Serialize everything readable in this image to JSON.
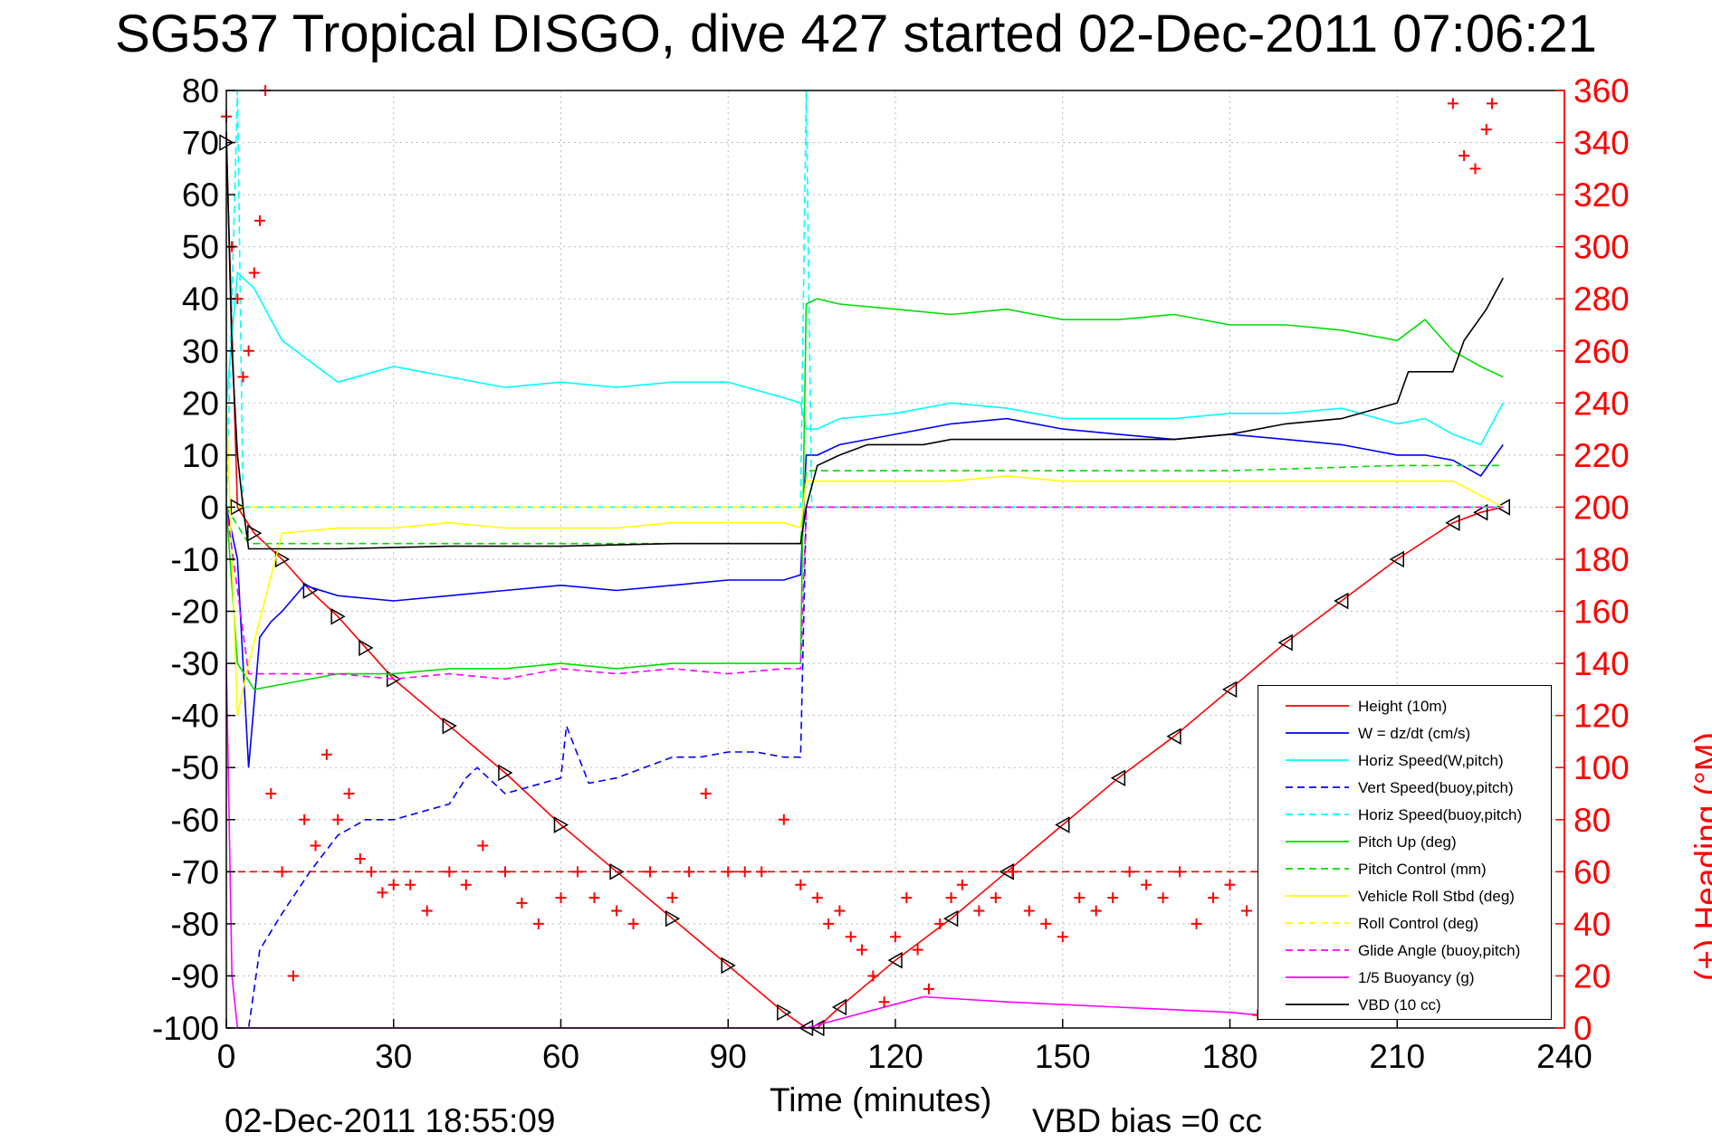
{
  "title": "SG537 Tropical DISGO, dive 427 started 02-Dec-2011 07:06:21",
  "footer": {
    "timestamp": "02-Dec-2011 18:55:09",
    "vbd_bias": "VBD bias =0 cc"
  },
  "chart_data": {
    "type": "line",
    "xlabel": "Time (minutes)",
    "ylabel": "",
    "ylabel_right": "(+) Heading (°M)",
    "xlim": [
      0,
      240
    ],
    "ylim": [
      -100,
      80
    ],
    "ylim_right": [
      0,
      360
    ],
    "xticks": [
      0,
      30,
      60,
      90,
      120,
      150,
      180,
      210,
      240
    ],
    "yticks": [
      -100,
      -90,
      -80,
      -70,
      -60,
      -50,
      -40,
      -30,
      -20,
      -10,
      0,
      10,
      20,
      30,
      40,
      50,
      60,
      70,
      80
    ],
    "yticks_right": [
      0,
      20,
      40,
      60,
      80,
      100,
      120,
      140,
      160,
      180,
      200,
      220,
      240,
      260,
      280,
      300,
      320,
      340,
      360
    ],
    "grid": true,
    "legend_position": "bottom-right",
    "series": [
      {
        "name": "Height (10m)",
        "color": "#ff0000",
        "style": "solid",
        "marker": "triangle",
        "x": [
          0,
          2,
          5,
          10,
          15,
          20,
          25,
          30,
          40,
          50,
          60,
          70,
          80,
          90,
          100,
          104,
          106,
          110,
          120,
          130,
          140,
          150,
          160,
          170,
          180,
          190,
          200,
          210,
          220,
          225,
          229
        ],
        "y": [
          70,
          0,
          -5,
          -10,
          -16,
          -21,
          -27,
          -33,
          -42,
          -51,
          -61,
          -70,
          -79,
          -88,
          -97,
          -100,
          -100,
          -96,
          -87,
          -79,
          -70,
          -61,
          -52,
          -44,
          -35,
          -26,
          -18,
          -10,
          -3,
          -1,
          0
        ]
      },
      {
        "name": "W = dz/dt (cm/s)",
        "color": "#0000ff",
        "style": "solid",
        "x": [
          0,
          2,
          4,
          6,
          8,
          10,
          14,
          20,
          30,
          40,
          50,
          60,
          70,
          80,
          90,
          100,
          103,
          104,
          106,
          110,
          120,
          130,
          140,
          150,
          160,
          170,
          180,
          190,
          200,
          210,
          215,
          220,
          225,
          229
        ],
        "y": [
          0,
          -10,
          -50,
          -25,
          -22,
          -20,
          -15,
          -17,
          -18,
          -17,
          -16,
          -15,
          -16,
          -15,
          -14,
          -14,
          -13,
          10,
          10,
          12,
          14,
          16,
          17,
          15,
          14,
          13,
          14,
          13,
          12,
          10,
          10,
          9,
          6,
          12
        ]
      },
      {
        "name": "Horiz Speed(W,pitch)",
        "color": "#00ffff",
        "style": "solid",
        "x": [
          0,
          2,
          5,
          10,
          15,
          20,
          30,
          40,
          50,
          60,
          70,
          80,
          90,
          100,
          103,
          104,
          106,
          110,
          120,
          130,
          140,
          150,
          160,
          170,
          180,
          190,
          200,
          210,
          215,
          220,
          225,
          229
        ],
        "y": [
          20,
          45,
          42,
          32,
          28,
          24,
          27,
          25,
          23,
          24,
          23,
          24,
          24,
          21,
          20,
          15,
          15,
          17,
          18,
          20,
          19,
          17,
          17,
          17,
          18,
          18,
          19,
          16,
          17,
          14,
          12,
          20
        ]
      },
      {
        "name": "Vert Speed(buoy,pitch)",
        "color": "#0000ff",
        "style": "dashed",
        "x": [
          0,
          2,
          4,
          6,
          10,
          15,
          20,
          25,
          30,
          40,
          43,
          45,
          50,
          60,
          61,
          65,
          70,
          80,
          85,
          90,
          95,
          100,
          103,
          104,
          110,
          150,
          200,
          229
        ],
        "y": [
          -100,
          -100,
          -100,
          -85,
          -78,
          -70,
          -63,
          -60,
          -60,
          -57,
          -52,
          -50,
          -55,
          -52,
          -42,
          -53,
          -52,
          -48,
          -48,
          -47,
          -47,
          -48,
          -48,
          0,
          0,
          0,
          0,
          0
        ]
      },
      {
        "name": "Horiz Speed(buoy,pitch)",
        "color": "#00ffff",
        "style": "dashed",
        "x": [
          0,
          2,
          3,
          4,
          10,
          103,
          104,
          105,
          229
        ],
        "y": [
          0,
          80,
          0,
          0,
          0,
          0,
          80,
          0,
          0
        ]
      },
      {
        "name": "Pitch Up (deg)",
        "color": "#00dd00",
        "style": "solid",
        "x": [
          0,
          2,
          5,
          10,
          15,
          20,
          30,
          40,
          50,
          60,
          70,
          80,
          90,
          100,
          103,
          104,
          106,
          110,
          120,
          130,
          140,
          150,
          160,
          170,
          180,
          190,
          200,
          210,
          215,
          220,
          225,
          229
        ],
        "y": [
          0,
          -30,
          -35,
          -34,
          -33,
          -32,
          -32,
          -31,
          -31,
          -30,
          -31,
          -30,
          -30,
          -30,
          -30,
          39,
          40,
          39,
          38,
          37,
          38,
          36,
          36,
          37,
          35,
          35,
          34,
          32,
          36,
          30,
          27,
          25
        ]
      },
      {
        "name": "Pitch Control (mm)",
        "color": "#00dd00",
        "style": "dashed",
        "x": [
          0,
          4,
          30,
          60,
          90,
          103,
          104,
          120,
          150,
          180,
          210,
          229
        ],
        "y": [
          0,
          -7,
          -7,
          -7,
          -7,
          -7,
          7,
          7,
          7,
          7,
          8,
          8
        ]
      },
      {
        "name": "Vehicle Roll Stbd (deg)",
        "color": "#ffff00",
        "style": "solid",
        "x": [
          0,
          2,
          4,
          10,
          20,
          30,
          40,
          50,
          60,
          70,
          80,
          90,
          100,
          103,
          104,
          110,
          120,
          130,
          140,
          150,
          160,
          170,
          180,
          190,
          200,
          210,
          220,
          229
        ],
        "y": [
          20,
          -40,
          -30,
          -5,
          -4,
          -4,
          -3,
          -4,
          -4,
          -4,
          -3,
          -3,
          -3,
          -4,
          5,
          5,
          5,
          5,
          6,
          5,
          5,
          5,
          5,
          5,
          5,
          5,
          5,
          0
        ]
      },
      {
        "name": "Roll Control (deg)",
        "color": "#ffff00",
        "style": "dashed",
        "x": [
          0,
          4,
          30,
          60,
          90,
          103,
          104,
          120,
          150,
          180,
          210,
          229
        ],
        "y": [
          0,
          0,
          0,
          0,
          0,
          0,
          0,
          0,
          0,
          0,
          0,
          0
        ]
      },
      {
        "name": "Glide Angle (buoy,pitch)",
        "color": "#ff00ff",
        "style": "dashed",
        "x": [
          0,
          4,
          10,
          20,
          30,
          40,
          50,
          60,
          70,
          80,
          90,
          100,
          103,
          104,
          150,
          200,
          229
        ],
        "y": [
          0,
          -32,
          -32,
          -32,
          -33,
          -32,
          -33,
          -31,
          -32,
          -31,
          -32,
          -31,
          -31,
          0,
          0,
          0,
          0
        ]
      },
      {
        "name": "1/5 Buoyancy (g)",
        "color": "#ff00ff",
        "style": "solid",
        "x": [
          0,
          1,
          2,
          104,
          125,
          140,
          160,
          180,
          190
        ],
        "y": [
          -30,
          -90,
          -100,
          -100,
          -94,
          -95,
          -96,
          -97,
          -98
        ]
      },
      {
        "name": "VBD (10 cc)",
        "color": "#000000",
        "style": "solid",
        "x": [
          0,
          1,
          2,
          3,
          4,
          20,
          40,
          60,
          80,
          100,
          103,
          104,
          106,
          110,
          115,
          125,
          130,
          150,
          170,
          180,
          190,
          200,
          210,
          212,
          220,
          222,
          226,
          228,
          229
        ],
        "y": [
          72,
          30,
          10,
          0,
          -8,
          -8,
          -7.5,
          -7.5,
          -7,
          -7,
          -7,
          0,
          8,
          10,
          12,
          12,
          13,
          13,
          13,
          14,
          16,
          17,
          20,
          26,
          26,
          32,
          38,
          42,
          44
        ]
      },
      {
        "name": "",
        "axis": "right",
        "color": "#ff0000",
        "style": "markers",
        "marker": "plus",
        "x": [
          0,
          1,
          2,
          3,
          4,
          5,
          6,
          7,
          8,
          10,
          12,
          14,
          16,
          18,
          20,
          22,
          24,
          26,
          28,
          30,
          33,
          36,
          40,
          43,
          46,
          50,
          53,
          56,
          60,
          63,
          66,
          70,
          73,
          76,
          80,
          83,
          86,
          90,
          93,
          96,
          100,
          103,
          106,
          108,
          110,
          112,
          114,
          116,
          118,
          120,
          122,
          124,
          126,
          128,
          130,
          132,
          135,
          138,
          141,
          144,
          147,
          150,
          153,
          156,
          159,
          162,
          165,
          168,
          171,
          174,
          177,
          180,
          183,
          185,
          220,
          222,
          224,
          226,
          227
        ],
        "y": [
          350,
          300,
          280,
          250,
          260,
          290,
          310,
          360,
          90,
          60,
          20,
          80,
          70,
          105,
          80,
          90,
          65,
          60,
          52,
          55,
          55,
          45,
          60,
          55,
          70,
          60,
          48,
          40,
          50,
          60,
          50,
          45,
          40,
          60,
          50,
          60,
          90,
          60,
          60,
          60,
          80,
          55,
          50,
          40,
          45,
          35,
          30,
          20,
          10,
          35,
          50,
          30,
          15,
          40,
          50,
          55,
          45,
          50,
          60,
          45,
          40,
          35,
          50,
          45,
          50,
          60,
          55,
          50,
          60,
          40,
          50,
          55,
          45,
          5,
          355,
          335,
          330,
          345,
          355
        ]
      },
      {
        "name": "",
        "axis": "right",
        "color": "#ff0000",
        "style": "dashed",
        "x": [
          0,
          4,
          229
        ],
        "y": [
          60,
          60,
          60
        ]
      }
    ]
  }
}
